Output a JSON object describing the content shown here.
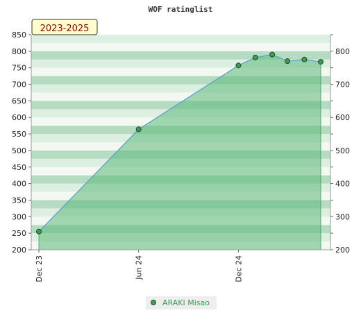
{
  "badge": "2023-2025",
  "chart_data": {
    "type": "area",
    "title": "WOF ratinglist",
    "x": [
      "2023-12-01",
      "2024-06-01",
      "2024-12-01",
      "2025-01-01",
      "2025-02-01",
      "2025-03-01",
      "2025-04-01",
      "2025-05-01"
    ],
    "series": [
      {
        "name": "ARAKI Misao",
        "values": [
          255,
          564,
          757,
          781,
          790,
          770,
          775,
          768
        ]
      }
    ],
    "x_tick_labels": [
      {
        "label": "Dec 23",
        "date": "2023-12-01"
      },
      {
        "label": "Jun 24",
        "date": "2024-06-01"
      },
      {
        "label": "Dec 24",
        "date": "2024-12-01"
      }
    ],
    "x_range": [
      "2023-12-01",
      "2025-05-01"
    ],
    "ylim_left": [
      200,
      850
    ],
    "yticks_left": [
      200,
      250,
      300,
      350,
      400,
      450,
      500,
      550,
      600,
      650,
      700,
      750,
      800,
      850
    ],
    "yticks_right": [
      200,
      300,
      400,
      500,
      600,
      700,
      800
    ],
    "grid": "horizontal bands",
    "legend_position": "bottom-center",
    "colors": {
      "line": "#5a9fd4",
      "fill": "#5cb87a",
      "marker": "#3f9a55",
      "band_light": "#f3f8f2",
      "band_mid": "#dcefe0",
      "band_dark": "#b5dcc0",
      "badge_bg": "#ffffcc"
    }
  }
}
